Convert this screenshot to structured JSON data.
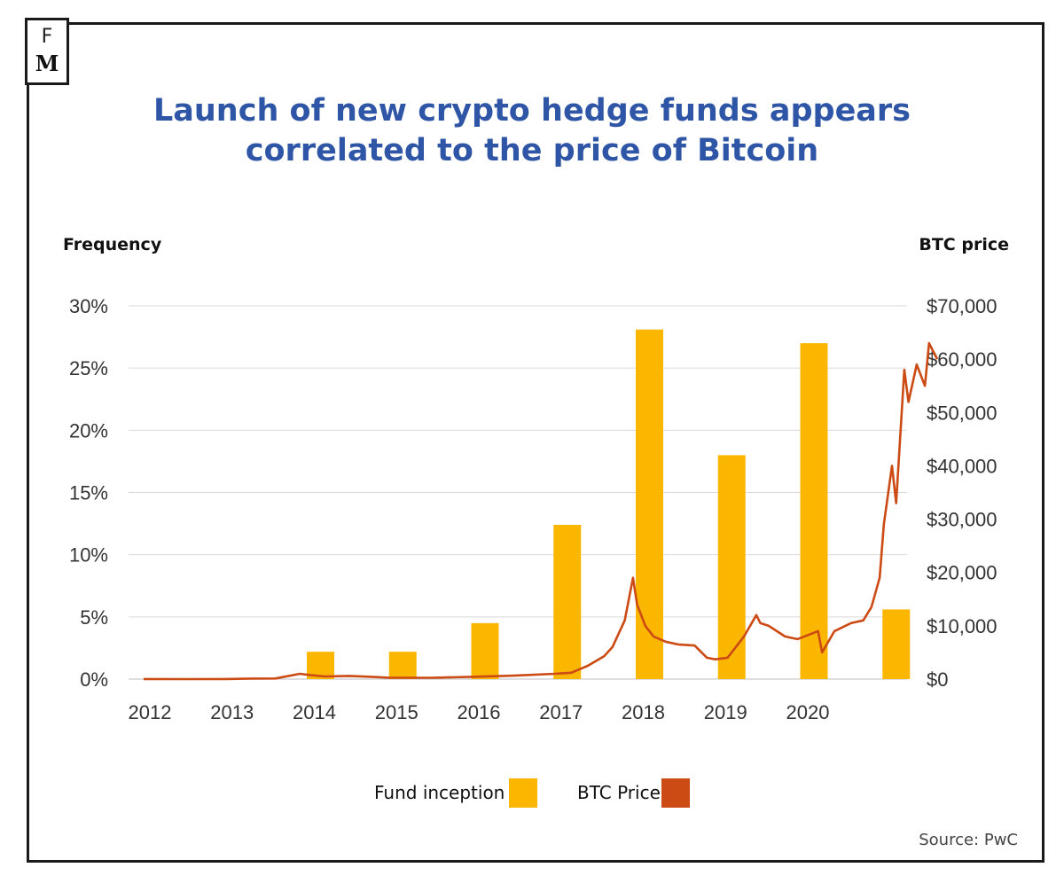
{
  "logo": {
    "top_letter": "F",
    "bottom_letter": "M"
  },
  "title_line1": "Launch of new crypto hedge funds appears",
  "title_line2": "correlated to the price of Bitcoin",
  "source": "Source: PwC",
  "colors": {
    "title": "#2f56a6",
    "bar": "#fbb700",
    "line": "#cc4a14",
    "grid": "#d9d9d9",
    "axis_text": "#333333"
  },
  "chart_data": {
    "type": "bar",
    "ylabel": "Frequency",
    "y2label": "BTC price",
    "ylim": [
      0,
      30
    ],
    "y2lim": [
      0,
      70000
    ],
    "y_ticks": [
      "0%",
      "5%",
      "10%",
      "15%",
      "20%",
      "25%",
      "30%"
    ],
    "y2_ticks": [
      "$0",
      "$10,000",
      "$20,000",
      "$30,000",
      "$40,000",
      "$50,000",
      "$60,000",
      "$70,000"
    ],
    "x_ticks": [
      "2012",
      "2013",
      "2014",
      "2015",
      "2016",
      "2017",
      "2018",
      "2019",
      "2020"
    ],
    "grid": true,
    "legend_position": "bottom",
    "series": [
      {
        "name": "Fund inception",
        "type": "bar",
        "axis": "left",
        "x": [
          2014,
          2015,
          2016,
          2017,
          2018,
          2019,
          2020,
          2021
        ],
        "values": [
          2.2,
          2.2,
          4.5,
          12.4,
          28.1,
          18.0,
          27.0,
          5.6
        ]
      },
      {
        "name": "BTC Price",
        "type": "line",
        "axis": "right",
        "x": [
          2012.0,
          2012.5,
          2013.0,
          2013.3,
          2013.6,
          2013.9,
          2014.0,
          2014.2,
          2014.5,
          2014.8,
          2015.0,
          2015.5,
          2016.0,
          2016.5,
          2017.0,
          2017.2,
          2017.4,
          2017.6,
          2017.7,
          2017.85,
          2017.95,
          2018.0,
          2018.1,
          2018.2,
          2018.35,
          2018.5,
          2018.7,
          2018.85,
          2018.95,
          2019.1,
          2019.3,
          2019.45,
          2019.5,
          2019.6,
          2019.8,
          2019.95,
          2020.2,
          2020.25,
          2020.4,
          2020.6,
          2020.75,
          2020.85,
          2020.95,
          2021.0,
          2021.1,
          2021.15,
          2021.25,
          2021.3,
          2021.4,
          2021.5,
          2021.55,
          2021.65
        ],
        "values": [
          10,
          8,
          13,
          100,
          120,
          1000,
          800,
          500,
          600,
          400,
          250,
          250,
          430,
          650,
          1000,
          1200,
          2500,
          4300,
          6000,
          11000,
          19000,
          14000,
          10000,
          8000,
          7000,
          6500,
          6300,
          4000,
          3700,
          4000,
          8000,
          12000,
          10500,
          10000,
          8000,
          7500,
          9000,
          5000,
          9000,
          10500,
          11000,
          13500,
          19000,
          29000,
          40000,
          33000,
          58000,
          52000,
          59000,
          55000,
          63000,
          60000
        ]
      }
    ]
  }
}
